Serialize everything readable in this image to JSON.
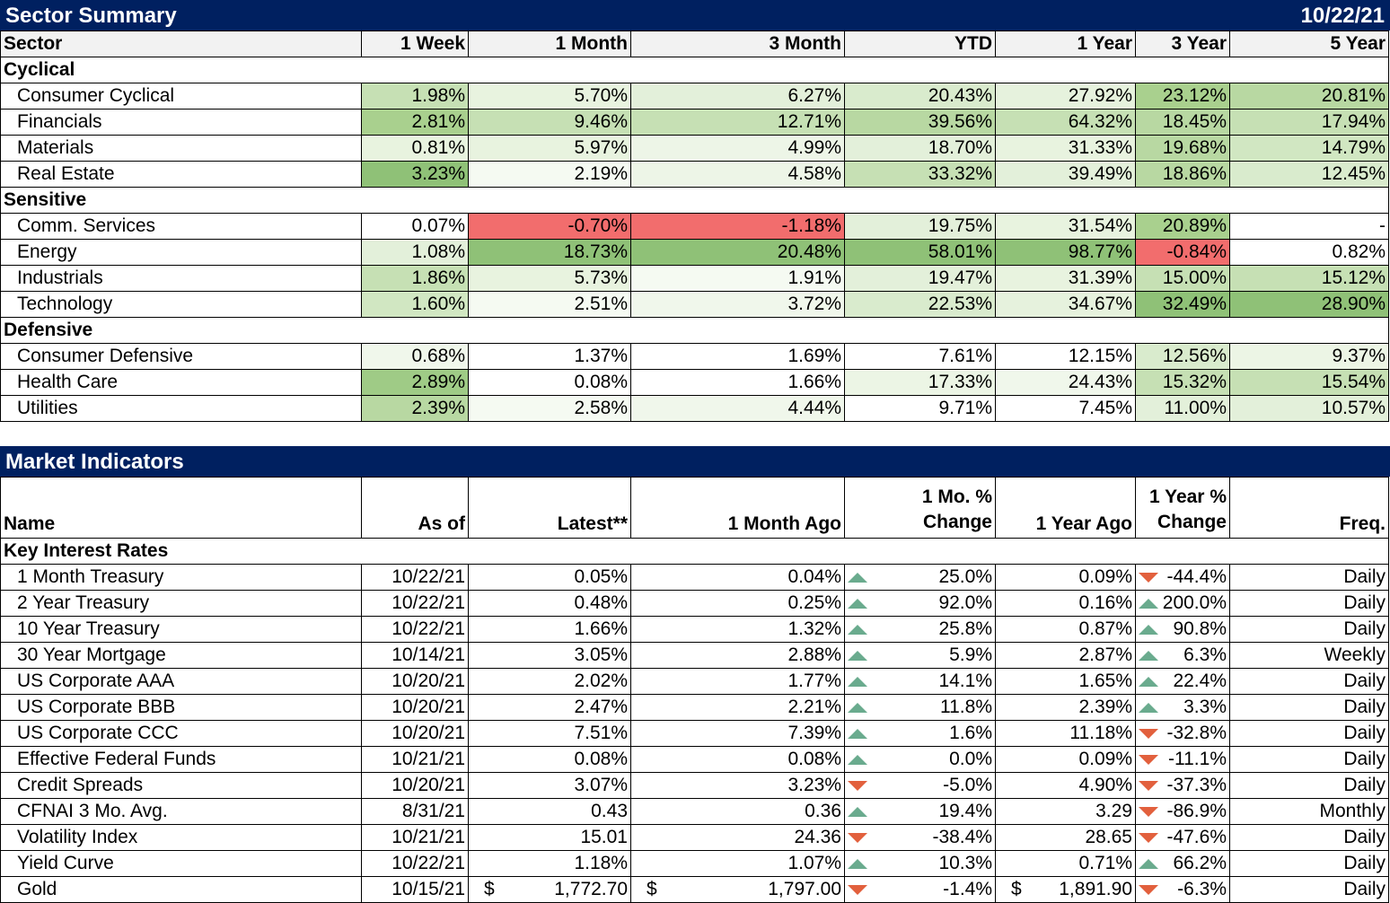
{
  "sector_summary": {
    "title": "Sector Summary",
    "date": "10/22/21",
    "columns": [
      "Sector",
      "1 Week",
      "1 Month",
      "3 Month",
      "YTD",
      "1 Year",
      "3 Year",
      "5 Year"
    ],
    "groups": [
      {
        "name": "Cyclical",
        "rows": [
          {
            "name": "Consumer Cyclical",
            "values": [
              "1.98%",
              "5.70%",
              "6.27%",
              "20.43%",
              "27.92%",
              "23.12%",
              "20.81%"
            ],
            "colors": [
              "#c6e0b4",
              "#e8f3df",
              "#e3f0da",
              "#d9ebcd",
              "#e6f2dd",
              "#a9d08e",
              "#b8d8a2"
            ]
          },
          {
            "name": "Financials",
            "values": [
              "2.81%",
              "9.46%",
              "12.71%",
              "39.56%",
              "64.32%",
              "18.45%",
              "17.94%"
            ],
            "colors": [
              "#a9d08e",
              "#c6e0b4",
              "#c6e0b4",
              "#b8d8a2",
              "#c6e0b4",
              "#b8d8a2",
              "#c6e0b4"
            ]
          },
          {
            "name": "Materials",
            "values": [
              "0.81%",
              "5.97%",
              "4.99%",
              "18.70%",
              "31.33%",
              "19.68%",
              "14.79%"
            ],
            "colors": [
              "#e8f3df",
              "#e8f3df",
              "#edf5e7",
              "#e3f0da",
              "#e8f3df",
              "#b8d8a2",
              "#d1e7c2"
            ]
          },
          {
            "name": "Real Estate",
            "values": [
              "3.23%",
              "2.19%",
              "4.58%",
              "33.32%",
              "39.49%",
              "18.86%",
              "12.45%"
            ],
            "colors": [
              "#8fc177",
              "#f5faf2",
              "#edf5e7",
              "#c6e0b4",
              "#e3f0da",
              "#b8d8a2",
              "#d9ebcd"
            ]
          }
        ]
      },
      {
        "name": "Sensitive",
        "rows": [
          {
            "name": "Comm. Services",
            "values": [
              "0.07%",
              "-0.70%",
              "-1.18%",
              "19.75%",
              "31.54%",
              "20.89%",
              "-"
            ],
            "colors": [
              "#ffffff",
              "#f26d6d",
              "#f26d6d",
              "#e3f0da",
              "#e8f3df",
              "#a9d08e",
              "#ffffff"
            ]
          },
          {
            "name": "Energy",
            "values": [
              "1.08%",
              "18.73%",
              "20.48%",
              "58.01%",
              "98.77%",
              "-0.84%",
              "0.82%"
            ],
            "colors": [
              "#e3f0da",
              "#8fc177",
              "#8fc177",
              "#8fc177",
              "#8fc177",
              "#f26d6d",
              "#ffffff"
            ]
          },
          {
            "name": "Industrials",
            "values": [
              "1.86%",
              "5.73%",
              "1.91%",
              "19.47%",
              "31.39%",
              "15.00%",
              "15.12%"
            ],
            "colors": [
              "#c6e0b4",
              "#e8f3df",
              "#f5faf2",
              "#e3f0da",
              "#e8f3df",
              "#c6e0b4",
              "#c6e0b4"
            ]
          },
          {
            "name": "Technology",
            "values": [
              "1.60%",
              "2.51%",
              "3.72%",
              "22.53%",
              "34.67%",
              "32.49%",
              "28.90%"
            ],
            "colors": [
              "#d1e7c2",
              "#f5faf2",
              "#f0f7eb",
              "#d9ebcd",
              "#e6f2dd",
              "#8fc177",
              "#8fc177"
            ]
          }
        ]
      },
      {
        "name": "Defensive",
        "rows": [
          {
            "name": "Consumer Defensive",
            "values": [
              "0.68%",
              "1.37%",
              "1.69%",
              "7.61%",
              "12.15%",
              "12.56%",
              "9.37%"
            ],
            "colors": [
              "#f0f7eb",
              "#ffffff",
              "#ffffff",
              "#ffffff",
              "#ffffff",
              "#d9ebcd",
              "#ecf5e5"
            ]
          },
          {
            "name": "Health Care",
            "values": [
              "2.89%",
              "0.08%",
              "1.66%",
              "17.33%",
              "24.43%",
              "15.32%",
              "15.54%"
            ],
            "colors": [
              "#9fcb86",
              "#ffffff",
              "#ffffff",
              "#ecf5e5",
              "#f0f7eb",
              "#c6e0b4",
              "#c6e0b4"
            ]
          },
          {
            "name": "Utilities",
            "values": [
              "2.39%",
              "2.58%",
              "4.44%",
              "9.71%",
              "7.45%",
              "11.00%",
              "10.57%"
            ],
            "colors": [
              "#b8d8a2",
              "#f5faf2",
              "#f0f7eb",
              "#ffffff",
              "#ffffff",
              "#e3f0da",
              "#e3f0da"
            ]
          }
        ]
      }
    ]
  },
  "market_indicators": {
    "title": "Market Indicators",
    "columns": {
      "name": "Name",
      "as_of": "As of",
      "latest": "Latest**",
      "month_ago": "1 Month Ago",
      "mo_chg_1": "1 Mo. %",
      "mo_chg_2": "Change",
      "year_ago": "1 Year Ago",
      "yr_chg_1": "1 Year %",
      "yr_chg_2": "Change",
      "freq": "Freq."
    },
    "group": "Key Interest Rates",
    "rows": [
      {
        "name": "1 Month Treasury",
        "as_of": "10/22/21",
        "latest": "0.05%",
        "month_ago": "0.04%",
        "mo_dir": "up",
        "mo_chg": "25.0%",
        "year_ago": "0.09%",
        "yr_dir": "down",
        "yr_chg": "-44.4%",
        "freq": "Daily"
      },
      {
        "name": "2 Year Treasury",
        "as_of": "10/22/21",
        "latest": "0.48%",
        "month_ago": "0.25%",
        "mo_dir": "up",
        "mo_chg": "92.0%",
        "year_ago": "0.16%",
        "yr_dir": "up",
        "yr_chg": "200.0%",
        "freq": "Daily"
      },
      {
        "name": "10 Year Treasury",
        "as_of": "10/22/21",
        "latest": "1.66%",
        "month_ago": "1.32%",
        "mo_dir": "up",
        "mo_chg": "25.8%",
        "year_ago": "0.87%",
        "yr_dir": "up",
        "yr_chg": "90.8%",
        "freq": "Daily"
      },
      {
        "name": "30 Year Mortgage",
        "as_of": "10/14/21",
        "latest": "3.05%",
        "month_ago": "2.88%",
        "mo_dir": "up",
        "mo_chg": "5.9%",
        "year_ago": "2.87%",
        "yr_dir": "up",
        "yr_chg": "6.3%",
        "freq": "Weekly"
      },
      {
        "name": "US Corporate AAA",
        "as_of": "10/20/21",
        "latest": "2.02%",
        "month_ago": "1.77%",
        "mo_dir": "up",
        "mo_chg": "14.1%",
        "year_ago": "1.65%",
        "yr_dir": "up",
        "yr_chg": "22.4%",
        "freq": "Daily"
      },
      {
        "name": "US Corporate BBB",
        "as_of": "10/20/21",
        "latest": "2.47%",
        "month_ago": "2.21%",
        "mo_dir": "up",
        "mo_chg": "11.8%",
        "year_ago": "2.39%",
        "yr_dir": "up",
        "yr_chg": "3.3%",
        "freq": "Daily"
      },
      {
        "name": "US Corporate CCC",
        "as_of": "10/20/21",
        "latest": "7.51%",
        "month_ago": "7.39%",
        "mo_dir": "up",
        "mo_chg": "1.6%",
        "year_ago": "11.18%",
        "yr_dir": "down",
        "yr_chg": "-32.8%",
        "freq": "Daily"
      },
      {
        "name": "Effective Federal Funds",
        "as_of": "10/21/21",
        "latest": "0.08%",
        "month_ago": "0.08%",
        "mo_dir": "up",
        "mo_chg": "0.0%",
        "year_ago": "0.09%",
        "yr_dir": "down",
        "yr_chg": "-11.1%",
        "freq": "Daily"
      },
      {
        "name": "Credit Spreads",
        "as_of": "10/20/21",
        "latest": "3.07%",
        "month_ago": "3.23%",
        "mo_dir": "down",
        "mo_chg": "-5.0%",
        "year_ago": "4.90%",
        "yr_dir": "down",
        "yr_chg": "-37.3%",
        "freq": "Daily"
      },
      {
        "name": "CFNAI 3 Mo. Avg.",
        "as_of": "8/31/21",
        "latest": "0.43",
        "month_ago": "0.36",
        "mo_dir": "up",
        "mo_chg": "19.4%",
        "year_ago": "3.29",
        "yr_dir": "down",
        "yr_chg": "-86.9%",
        "freq": "Monthly"
      },
      {
        "name": "Volatility Index",
        "as_of": "10/21/21",
        "latest": "15.01",
        "month_ago": "24.36",
        "mo_dir": "down",
        "mo_chg": "-38.4%",
        "year_ago": "28.65",
        "yr_dir": "down",
        "yr_chg": "-47.6%",
        "freq": "Daily"
      },
      {
        "name": "Yield Curve",
        "as_of": "10/22/21",
        "latest": "1.18%",
        "month_ago": "1.07%",
        "mo_dir": "up",
        "mo_chg": "10.3%",
        "year_ago": "0.71%",
        "yr_dir": "up",
        "yr_chg": "66.2%",
        "freq": "Daily"
      },
      {
        "name": "Gold",
        "as_of": "10/15/21",
        "latest": "1,772.70",
        "latest_cur": "$",
        "month_ago": "1,797.00",
        "month_ago_cur": "$",
        "mo_dir": "down",
        "mo_chg": "-1.4%",
        "year_ago": "1,891.90",
        "year_ago_cur": "$",
        "yr_dir": "down",
        "yr_chg": "-6.3%",
        "freq": "Daily"
      }
    ]
  }
}
